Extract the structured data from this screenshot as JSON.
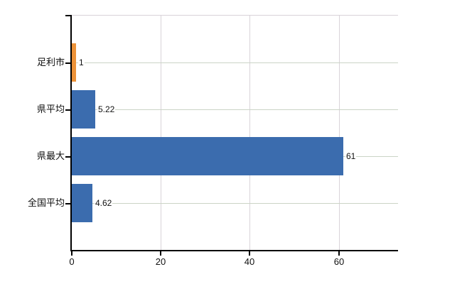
{
  "chart_data": {
    "type": "bar",
    "orientation": "horizontal",
    "title": "",
    "xlabel": "",
    "ylabel": "",
    "categories": [
      "足利市",
      "県平均",
      "県最大",
      "全国平均"
    ],
    "values": [
      1,
      5.22,
      61,
      4.62
    ],
    "value_labels": [
      "1",
      "5.22",
      "61",
      "4.62"
    ],
    "bar_colors": [
      "#ec9239",
      "#3b6cae",
      "#3b6cae",
      "#3b6cae"
    ],
    "x_ticks": [
      "0",
      "20",
      "40",
      "60"
    ],
    "x_tick_values": [
      0,
      20,
      40,
      60
    ],
    "xlim": [
      0,
      73.3
    ],
    "grid": true,
    "legend": "none",
    "colors": {
      "bar_blue": "#3b6cae",
      "bar_orange": "#ec9239",
      "axis": "#000000",
      "grid_horizontal": "#cbd4c6",
      "grid_vertical": "#d9d3d9",
      "background": "#ffffff",
      "text": "#111111"
    }
  }
}
